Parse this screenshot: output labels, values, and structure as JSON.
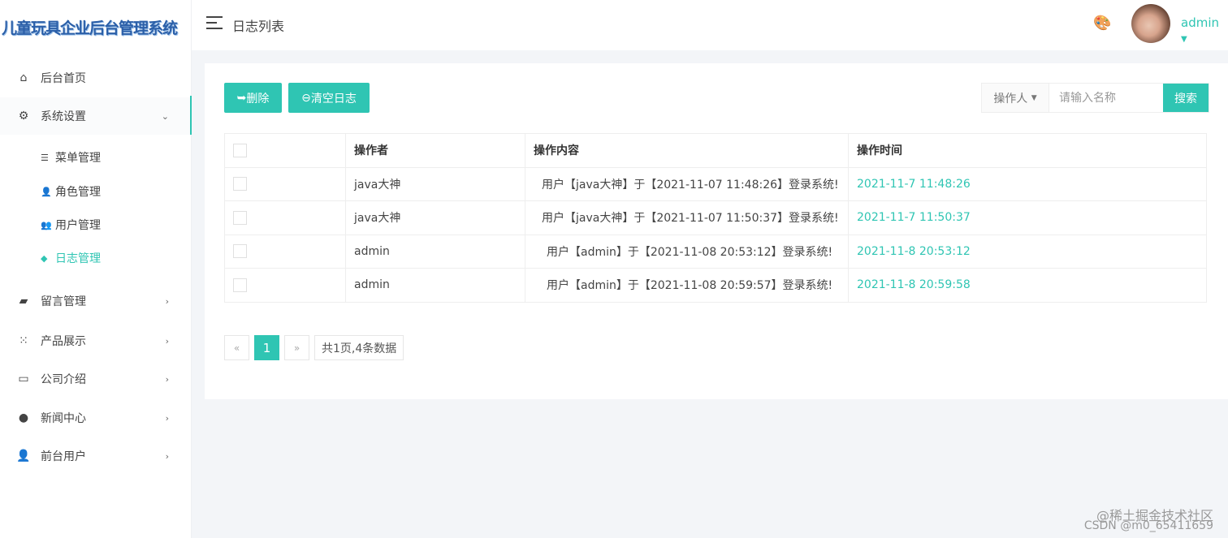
{
  "app_title": "儿童玩具企业后台管理系统",
  "header": {
    "page_title": "日志列表",
    "user": "admin"
  },
  "sidebar": {
    "items": [
      {
        "label": "后台首页",
        "icon": "home-icon"
      },
      {
        "label": "系统设置",
        "icon": "gear-icon",
        "expanded": true
      },
      {
        "label": "留言管理",
        "icon": "comment-icon"
      },
      {
        "label": "产品展示",
        "icon": "grid-icon"
      },
      {
        "label": "公司介绍",
        "icon": "laptop-icon"
      },
      {
        "label": "新闻中心",
        "icon": "news-icon"
      },
      {
        "label": "前台用户",
        "icon": "user-icon"
      }
    ],
    "sub_items": [
      {
        "label": "菜单管理",
        "icon": "list-icon"
      },
      {
        "label": "角色管理",
        "icon": "user-cog-icon"
      },
      {
        "label": "用户管理",
        "icon": "users-icon"
      },
      {
        "label": "日志管理",
        "icon": "tag-icon",
        "active": true
      }
    ]
  },
  "toolbar": {
    "delete_label": "删除",
    "clear_label": "清空日志",
    "filter_select": "操作人",
    "search_placeholder": "请输入名称",
    "search_label": "搜索"
  },
  "table": {
    "headers": [
      "操作者",
      "操作内容",
      "操作时间"
    ],
    "rows": [
      {
        "operator": "java大神",
        "content": "用户【java大神】于【2021-11-07 11:48:26】登录系统!",
        "time": "2021-11-7 11:48:26"
      },
      {
        "operator": "java大神",
        "content": "用户【java大神】于【2021-11-07 11:50:37】登录系统!",
        "time": "2021-11-7 11:50:37"
      },
      {
        "operator": "admin",
        "content": "用户【admin】于【2021-11-08 20:53:12】登录系统!",
        "time": "2021-11-8 20:53:12"
      },
      {
        "operator": "admin",
        "content": "用户【admin】于【2021-11-08 20:59:57】登录系统!",
        "time": "2021-11-8 20:59:58"
      }
    ]
  },
  "pagination": {
    "prev": "«",
    "current": "1",
    "next": "»",
    "info": "共1页,4条数据"
  },
  "watermark": {
    "line1": "@稀土掘金技术社区",
    "line2": "CSDN @m0_65411659"
  },
  "colors": {
    "accent": "#2fc5b3"
  }
}
